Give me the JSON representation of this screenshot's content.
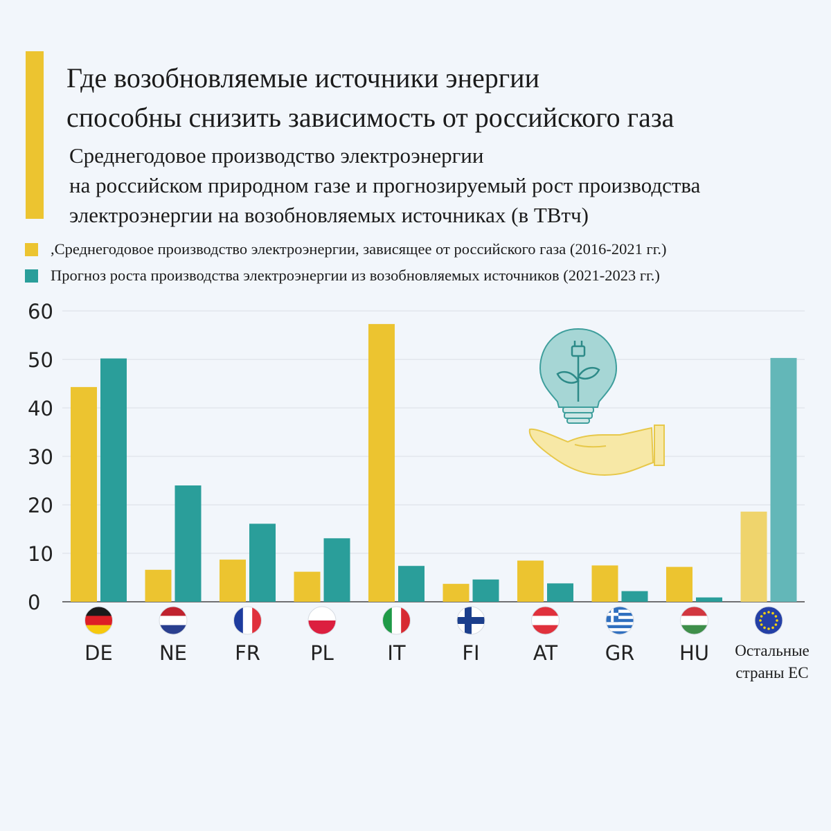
{
  "colors": {
    "accent": "#ecc430",
    "gas": "#ecc430",
    "renewables": "#2a9e9a",
    "gas_other": "#efd46c",
    "renewables_other": "#63b7b8",
    "grid": "#d9dfe6",
    "axis": "#444444"
  },
  "header": {
    "title": "Где возобновляемые источники энергии\nспособны снизить зависимость от российского газа",
    "subtitle": "Среднегодовое производство электроэнергии\nна российском природном газе и прогнозируемый рост производства\nэлектроэнергии на возобновляемых источниках (в ТВтч)"
  },
  "legend": {
    "gas_label": ",Среднегодовое производство электроэнергии, зависящее от российского газа (2016-2021 гг.)",
    "renewables_label": " Прогноз роста производства электроэнергии из возобновляемых источников (2021-2023 гг.)"
  },
  "decor": {
    "illustration_icon": "lightbulb-with-plant-in-hand-icon"
  },
  "chart_data": {
    "type": "bar",
    "categories": [
      "DE",
      "NE",
      "FR",
      "PL",
      "IT",
      "FI",
      "AT",
      "GR",
      "HU",
      "Остальные\nстраны ЕС"
    ],
    "flag_icons": [
      "flag-germany-icon",
      "flag-netherlands-icon",
      "flag-france-icon",
      "flag-poland-icon",
      "flag-italy-icon",
      "flag-finland-icon",
      "flag-austria-icon",
      "flag-greece-icon",
      "flag-hungary-icon",
      "flag-eu-icon"
    ],
    "series": [
      {
        "name": "Среднегодовое производство электроэнергии, зависящее от российского газа (2016-2021 гг.)",
        "values": [
          44.3,
          6.6,
          8.7,
          6.2,
          57.3,
          3.7,
          8.5,
          7.5,
          7.2,
          18.6
        ]
      },
      {
        "name": "Прогноз роста производства электроэнергии из возобновляемых источников (2021-2023 гг.)",
        "values": [
          50.2,
          24.0,
          16.1,
          13.1,
          7.4,
          4.6,
          3.8,
          2.2,
          0.9,
          50.3
        ]
      }
    ],
    "yticks": [
      0,
      10,
      20,
      30,
      40,
      50,
      60
    ],
    "ylim": [
      0,
      60
    ],
    "grid": true,
    "legend_position": "top-left"
  }
}
